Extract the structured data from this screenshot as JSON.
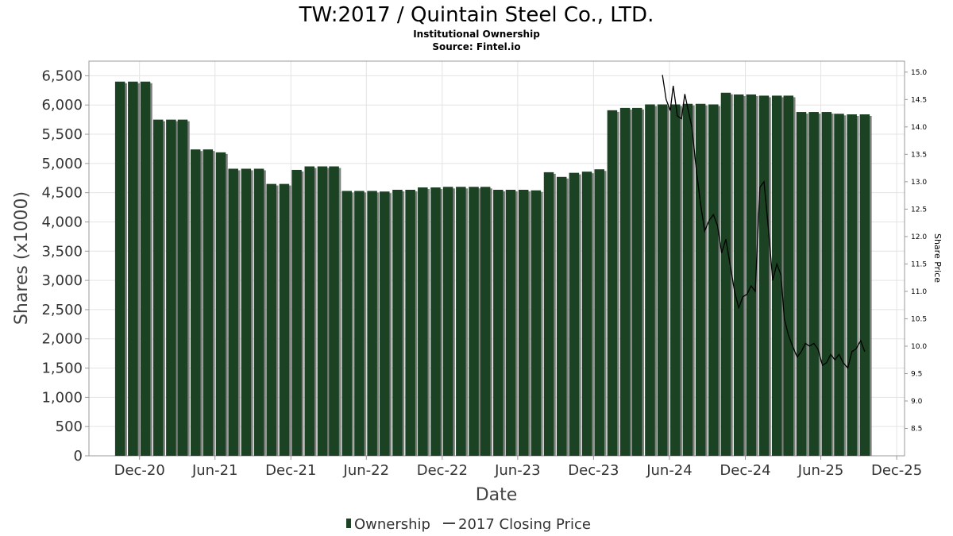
{
  "title": "TW:2017 / Quintain Steel Co., LTD.",
  "subtitle1": "Institutional Ownership",
  "subtitle2": "Source: Fintel.io",
  "colors": {
    "bar": "#1a4223",
    "bar_shadow": "#808080",
    "line": "#000000",
    "grid": "#e3e3e3"
  },
  "chart_data": {
    "type": "bar",
    "xlabel": "Date",
    "ylabel": "Shares (x1000)",
    "y2label": "Share Price",
    "ylim": [
      0,
      6750
    ],
    "y2lim": [
      8.0,
      15.2
    ],
    "yticks": [
      0,
      500,
      1000,
      1500,
      2000,
      2500,
      3000,
      3500,
      4000,
      4500,
      5000,
      5500,
      6000,
      6500
    ],
    "ytick_labels": [
      "0",
      "500",
      "1,000",
      "1,500",
      "2,000",
      "2,500",
      "3,000",
      "3,500",
      "4,000",
      "4,500",
      "5,000",
      "5,500",
      "6,000",
      "6,500"
    ],
    "y2ticks": [
      8.5,
      9.0,
      9.5,
      10.0,
      10.5,
      11.0,
      11.5,
      12.0,
      12.5,
      13.0,
      13.5,
      14.0,
      14.5,
      15.0
    ],
    "y2tick_labels": [
      "8.5",
      "9.0",
      "9.5",
      "10.0",
      "10.5",
      "11.0",
      "11.5",
      "12.0",
      "12.5",
      "13.0",
      "13.5",
      "14.0",
      "14.5",
      "15.0"
    ],
    "xlim": [
      "2020-08-01",
      "2025-12-20"
    ],
    "xticks": [
      "2020-12-01",
      "2021-06-01",
      "2021-12-01",
      "2022-06-01",
      "2022-12-01",
      "2023-06-01",
      "2023-12-01",
      "2024-06-01",
      "2024-12-01",
      "2025-06-01",
      "2025-12-01"
    ],
    "xtick_labels": [
      "Dec-20",
      "Jun-21",
      "Dec-21",
      "Jun-22",
      "Dec-22",
      "Jun-23",
      "Dec-23",
      "Jun-24",
      "Dec-24",
      "Jun-25",
      "Dec-25"
    ],
    "grid": true,
    "legend_position": "bottom-center",
    "series": [
      {
        "name": "Ownership",
        "type": "bar",
        "x": [
          "2020-10-01",
          "2020-11-01",
          "2020-12-01",
          "2021-01-01",
          "2021-02-01",
          "2021-03-01",
          "2021-04-01",
          "2021-05-01",
          "2021-06-01",
          "2021-07-01",
          "2021-08-01",
          "2021-09-01",
          "2021-10-01",
          "2021-11-01",
          "2021-12-01",
          "2022-01-01",
          "2022-02-01",
          "2022-03-01",
          "2022-04-01",
          "2022-05-01",
          "2022-06-01",
          "2022-07-01",
          "2022-08-01",
          "2022-09-01",
          "2022-10-01",
          "2022-11-01",
          "2022-12-01",
          "2023-01-01",
          "2023-02-01",
          "2023-03-01",
          "2023-04-01",
          "2023-05-01",
          "2023-06-01",
          "2023-07-01",
          "2023-08-01",
          "2023-09-01",
          "2023-10-01",
          "2023-11-01",
          "2023-12-01",
          "2024-01-01",
          "2024-02-01",
          "2024-03-01",
          "2024-04-01",
          "2024-05-01",
          "2024-06-01",
          "2024-07-01",
          "2024-08-01",
          "2024-09-01",
          "2024-10-01",
          "2024-11-01",
          "2024-12-01",
          "2025-01-01",
          "2025-02-01",
          "2025-03-01",
          "2025-04-01",
          "2025-05-01",
          "2025-06-01",
          "2025-07-01",
          "2025-08-01",
          "2025-09-01"
        ],
        "values": [
          6400,
          6400,
          6400,
          5750,
          5750,
          5750,
          5240,
          5240,
          5190,
          4910,
          4910,
          4910,
          4650,
          4650,
          4890,
          4950,
          4950,
          4950,
          4530,
          4530,
          4530,
          4520,
          4550,
          4550,
          4590,
          4590,
          4600,
          4600,
          4600,
          4600,
          4550,
          4550,
          4550,
          4540,
          4850,
          4770,
          4840,
          4860,
          4900,
          5910,
          5950,
          5950,
          6010,
          6010,
          6010,
          6020,
          6020,
          6010,
          6210,
          6180,
          6180,
          6160,
          6160,
          6160,
          5880,
          5880,
          5880,
          5850,
          5840,
          5840
        ]
      },
      {
        "name": "2017 Closing Price",
        "type": "line",
        "x": [
          "2024-05-15",
          "2024-05-24",
          "2024-06-03",
          "2024-06-10",
          "2024-06-20",
          "2024-06-30",
          "2024-07-08",
          "2024-07-15",
          "2024-07-25",
          "2024-08-05",
          "2024-08-15",
          "2024-08-25",
          "2024-09-05",
          "2024-09-15",
          "2024-09-25",
          "2024-10-05",
          "2024-10-15",
          "2024-10-25",
          "2024-11-05",
          "2024-11-15",
          "2024-11-25",
          "2024-12-05",
          "2024-12-15",
          "2024-12-25",
          "2025-01-05",
          "2025-01-15",
          "2025-01-25",
          "2025-02-05",
          "2025-02-15",
          "2025-02-25",
          "2025-03-05",
          "2025-03-15",
          "2025-03-25",
          "2025-04-05",
          "2025-04-15",
          "2025-04-25",
          "2025-05-05",
          "2025-05-15",
          "2025-05-25",
          "2025-06-05",
          "2025-06-15",
          "2025-06-25",
          "2025-07-05",
          "2025-07-15",
          "2025-07-25",
          "2025-08-05",
          "2025-08-15",
          "2025-08-25",
          "2025-09-05",
          "2025-09-15"
        ],
        "values": [
          14.95,
          14.5,
          14.3,
          14.75,
          14.2,
          14.15,
          14.6,
          14.35,
          14.0,
          13.2,
          12.6,
          12.1,
          12.3,
          12.4,
          12.2,
          11.7,
          11.95,
          11.5,
          11.0,
          10.7,
          10.9,
          10.95,
          11.1,
          11.0,
          12.9,
          13.0,
          12.2,
          11.2,
          11.5,
          11.3,
          10.5,
          10.2,
          10.0,
          9.8,
          9.9,
          10.05,
          10.0,
          10.05,
          9.95,
          9.65,
          9.7,
          9.85,
          9.75,
          9.85,
          9.7,
          9.6,
          9.9,
          9.95,
          10.1,
          9.9
        ]
      }
    ]
  }
}
